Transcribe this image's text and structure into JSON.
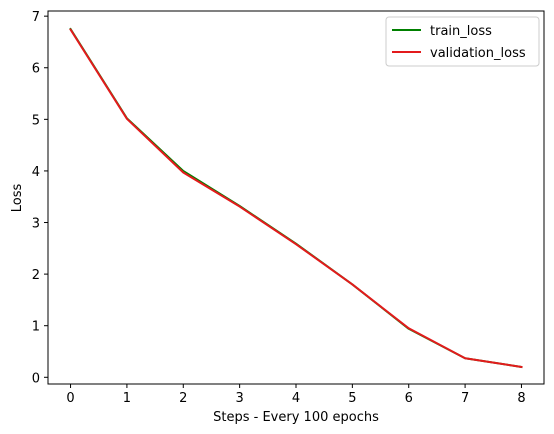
{
  "chart_data": {
    "type": "line",
    "title": "",
    "xlabel": "Steps - Every 100 epochs",
    "ylabel": "Loss",
    "x": [
      0,
      1,
      2,
      3,
      4,
      5,
      6,
      7,
      8
    ],
    "xticks": [
      "0",
      "1",
      "2",
      "3",
      "4",
      "5",
      "6",
      "7",
      "8"
    ],
    "yticks": [
      "0",
      "1",
      "2",
      "3",
      "4",
      "5",
      "6",
      "7"
    ],
    "xlim": [
      -0.4,
      8.4
    ],
    "ylim": [
      -0.13,
      7.1
    ],
    "grid": false,
    "legend_position": "top-right",
    "series": [
      {
        "name": "train_loss",
        "color": "#008000",
        "values": [
          6.75,
          5.02,
          4.0,
          3.32,
          2.59,
          1.8,
          0.94,
          0.37,
          0.2
        ]
      },
      {
        "name": "validation_loss",
        "color": "#e31a1c",
        "values": [
          6.74,
          5.01,
          3.97,
          3.31,
          2.58,
          1.8,
          0.95,
          0.37,
          0.2
        ]
      }
    ]
  }
}
